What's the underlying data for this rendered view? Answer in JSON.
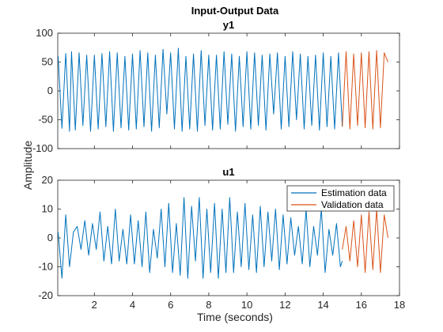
{
  "figure": {
    "title": "Input-Output Data",
    "ylabel": "Amplitude",
    "xlabel": "Time (seconds)"
  },
  "legend": {
    "items": [
      "Estimation data",
      "Validation data"
    ],
    "colors": [
      "#0072BD",
      "#D95319"
    ]
  },
  "chart_data": [
    {
      "type": "line",
      "title": "y1",
      "ylim": [
        -100,
        100
      ],
      "yticks": [
        -100,
        -50,
        0,
        50,
        100
      ],
      "xlim": [
        0.08,
        18
      ],
      "xticks": [
        2,
        4,
        6,
        8,
        10,
        12,
        14,
        16,
        18
      ],
      "grid": false,
      "series": [
        {
          "name": "Estimation data",
          "color": "#0072BD",
          "x": [
            0.1,
            0.3,
            0.5,
            0.7,
            0.8,
            1.0,
            1.2,
            1.4,
            1.6,
            1.8,
            2.0,
            2.2,
            2.4,
            2.6,
            2.8,
            3.0,
            3.2,
            3.4,
            3.6,
            3.8,
            4.0,
            4.2,
            4.4,
            4.6,
            4.8,
            5.0,
            5.2,
            5.4,
            5.6,
            5.8,
            6.0,
            6.2,
            6.4,
            6.6,
            6.8,
            7.0,
            7.2,
            7.4,
            7.6,
            7.8,
            8.0,
            8.2,
            8.4,
            8.6,
            8.8,
            9.0,
            9.2,
            9.4,
            9.6,
            9.8,
            10.0,
            10.2,
            10.4,
            10.6,
            10.8,
            11.0,
            11.2,
            11.4,
            11.6,
            11.8,
            12.0,
            12.2,
            12.4,
            12.6,
            12.8,
            13.0,
            13.2,
            13.4,
            13.6,
            13.8,
            14.0,
            14.2,
            14.4,
            14.6,
            14.8,
            15.0
          ],
          "values": [
            60,
            -65,
            65,
            -70,
            68,
            -68,
            66,
            -60,
            62,
            -70,
            62,
            -66,
            65,
            -62,
            68,
            -70,
            66,
            -64,
            60,
            -68,
            64,
            -66,
            70,
            -62,
            66,
            -70,
            62,
            -64,
            72,
            -40,
            66,
            -66,
            74,
            -70,
            60,
            -66,
            64,
            -70,
            70,
            -60,
            62,
            -68,
            62,
            -66,
            68,
            -58,
            64,
            -70,
            60,
            -62,
            68,
            -66,
            66,
            -60,
            62,
            -68,
            64,
            -40,
            66,
            -66,
            60,
            -62,
            68,
            -50,
            64,
            -66,
            60,
            -60,
            62,
            -68,
            66,
            -62,
            60,
            -66,
            66,
            -62
          ]
        },
        {
          "name": "Validation data",
          "color": "#D95319",
          "x": [
            15.0,
            15.2,
            15.4,
            15.6,
            15.8,
            16.0,
            16.2,
            16.4,
            16.6,
            16.8,
            17.0,
            17.2,
            17.4
          ],
          "values": [
            -62,
            68,
            -66,
            64,
            -60,
            66,
            -64,
            68,
            -66,
            70,
            -64,
            66,
            50
          ]
        }
      ]
    },
    {
      "type": "line",
      "title": "u1",
      "ylim": [
        -20,
        20
      ],
      "yticks": [
        -20,
        -10,
        0,
        10,
        20
      ],
      "xlim": [
        0.08,
        18
      ],
      "xticks": [
        2,
        4,
        6,
        8,
        10,
        12,
        14,
        16,
        18
      ],
      "grid": false,
      "series": [
        {
          "name": "Estimation data",
          "color": "#0072BD",
          "x": [
            0.1,
            0.3,
            0.5,
            0.7,
            0.9,
            1.1,
            1.3,
            1.5,
            1.7,
            1.9,
            2.1,
            2.3,
            2.5,
            2.7,
            2.9,
            3.1,
            3.3,
            3.5,
            3.7,
            3.9,
            4.1,
            4.3,
            4.5,
            4.7,
            4.9,
            5.1,
            5.3,
            5.5,
            5.7,
            5.9,
            6.1,
            6.3,
            6.5,
            6.7,
            6.9,
            7.1,
            7.3,
            7.5,
            7.7,
            7.9,
            8.1,
            8.3,
            8.5,
            8.7,
            8.9,
            9.1,
            9.3,
            9.5,
            9.7,
            9.9,
            10.1,
            10.3,
            10.5,
            10.7,
            10.9,
            11.1,
            11.3,
            11.5,
            11.7,
            11.9,
            12.1,
            12.3,
            12.5,
            12.7,
            12.9,
            13.1,
            13.3,
            13.5,
            13.7,
            13.9,
            14.1,
            14.3,
            14.5,
            14.7,
            14.9,
            15.0
          ],
          "values": [
            2,
            -14,
            8,
            -10,
            2,
            4,
            -4,
            6,
            -6,
            5,
            -4,
            9,
            -8,
            4,
            -9,
            10,
            -8,
            3,
            -9,
            8,
            -9,
            6,
            -10,
            9,
            -12,
            3,
            -7,
            10,
            -10,
            12,
            -12,
            5,
            -13,
            14,
            -14,
            11,
            -8,
            14,
            -14,
            10,
            -12,
            12,
            -14,
            10,
            -12,
            14,
            -12,
            9,
            -10,
            12,
            -11,
            8,
            -12,
            11,
            -10,
            9,
            -8,
            10,
            -11,
            8,
            -9,
            7,
            -6,
            4,
            -9,
            10,
            -10,
            4,
            -6,
            10,
            -12,
            3,
            -6,
            5,
            -10,
            -8
          ]
        },
        {
          "name": "Validation data",
          "color": "#D95319",
          "x": [
            15.0,
            15.2,
            15.4,
            15.6,
            15.8,
            16.0,
            16.2,
            16.4,
            16.6,
            16.8,
            17.0,
            17.2,
            17.4
          ],
          "values": [
            -4,
            4,
            -8,
            6,
            -10,
            8,
            -12,
            9,
            -11,
            10,
            -12,
            8,
            0
          ]
        }
      ]
    }
  ]
}
